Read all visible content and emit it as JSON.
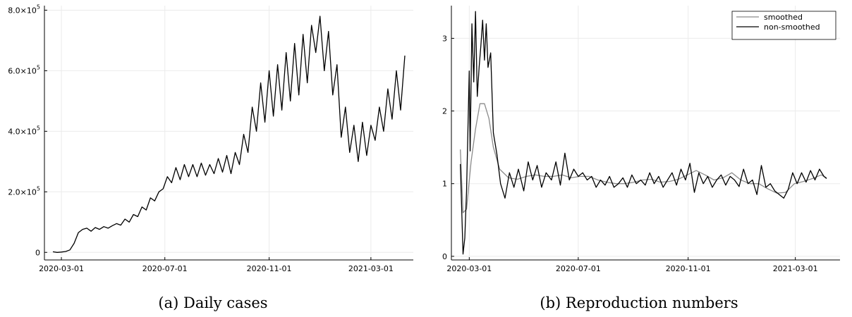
{
  "chart_data": [
    {
      "type": "line",
      "caption": "(a) Daily cases",
      "x_ticks": [
        "2020-03-01",
        "2020-07-01",
        "2020-11-01",
        "2021-03-01"
      ],
      "y_ticks": [
        {
          "value": 0,
          "mantissa": "0",
          "exponent": ""
        },
        {
          "value": 200000,
          "mantissa": "2.0×10",
          "exponent": "5"
        },
        {
          "value": 400000,
          "mantissa": "4.0×10",
          "exponent": "5"
        },
        {
          "value": 600000,
          "mantissa": "6.0×10",
          "exponent": "5"
        },
        {
          "value": 800000,
          "mantissa": "8.0×10",
          "exponent": "5"
        }
      ],
      "xlim": [
        "2020-02-10",
        "2021-04-20"
      ],
      "ylim": [
        -25000,
        815000
      ],
      "grid": true,
      "series": [
        {
          "color": "#000000",
          "x": [
            "2020-02-20",
            "2020-02-25",
            "2020-03-01",
            "2020-03-06",
            "2020-03-11",
            "2020-03-16",
            "2020-03-21",
            "2020-03-26",
            "2020-03-31",
            "2020-04-05",
            "2020-04-10",
            "2020-04-15",
            "2020-04-20",
            "2020-04-25",
            "2020-04-30",
            "2020-05-05",
            "2020-05-10",
            "2020-05-15",
            "2020-05-20",
            "2020-05-25",
            "2020-05-30",
            "2020-06-04",
            "2020-06-09",
            "2020-06-14",
            "2020-06-19",
            "2020-06-24",
            "2020-06-29",
            "2020-07-04",
            "2020-07-09",
            "2020-07-14",
            "2020-07-19",
            "2020-07-24",
            "2020-07-29",
            "2020-08-03",
            "2020-08-08",
            "2020-08-13",
            "2020-08-18",
            "2020-08-23",
            "2020-08-28",
            "2020-09-02",
            "2020-09-07",
            "2020-09-12",
            "2020-09-17",
            "2020-09-22",
            "2020-09-27",
            "2020-10-02",
            "2020-10-07",
            "2020-10-12",
            "2020-10-17",
            "2020-10-22",
            "2020-10-27",
            "2020-11-01",
            "2020-11-06",
            "2020-11-11",
            "2020-11-16",
            "2020-11-21",
            "2020-11-26",
            "2020-12-01",
            "2020-12-06",
            "2020-12-11",
            "2020-12-16",
            "2020-12-21",
            "2020-12-26",
            "2020-12-31",
            "2021-01-05",
            "2021-01-10",
            "2021-01-15",
            "2021-01-20",
            "2021-01-25",
            "2021-01-30",
            "2021-02-04",
            "2021-02-09",
            "2021-02-14",
            "2021-02-19",
            "2021-02-24",
            "2021-03-01",
            "2021-03-06",
            "2021-03-11",
            "2021-03-16",
            "2021-03-21",
            "2021-03-26",
            "2021-03-31",
            "2021-04-05",
            "2021-04-10"
          ],
          "y": [
            2000,
            0,
            1000,
            3000,
            8000,
            30000,
            65000,
            76000,
            80000,
            70000,
            82000,
            76000,
            85000,
            80000,
            88000,
            95000,
            90000,
            110000,
            100000,
            125000,
            118000,
            150000,
            140000,
            180000,
            170000,
            200000,
            210000,
            250000,
            230000,
            280000,
            240000,
            290000,
            250000,
            290000,
            250000,
            295000,
            255000,
            290000,
            260000,
            310000,
            265000,
            320000,
            260000,
            330000,
            290000,
            390000,
            330000,
            480000,
            400000,
            560000,
            430000,
            600000,
            450000,
            620000,
            470000,
            660000,
            500000,
            690000,
            520000,
            720000,
            560000,
            750000,
            660000,
            780000,
            600000,
            730000,
            520000,
            620000,
            380000,
            480000,
            330000,
            420000,
            300000,
            430000,
            320000,
            420000,
            370000,
            480000,
            400000,
            540000,
            440000,
            600000,
            470000,
            650000
          ]
        }
      ]
    },
    {
      "type": "line",
      "caption": "(b) Reproduction numbers",
      "x_ticks": [
        "2020-03-01",
        "2020-07-01",
        "2020-11-01",
        "2021-03-01"
      ],
      "y_ticks": [
        {
          "value": 0,
          "label": "0"
        },
        {
          "value": 1,
          "label": "1"
        },
        {
          "value": 2,
          "label": "2"
        },
        {
          "value": 3,
          "label": "3"
        }
      ],
      "xlim": [
        "2020-02-10",
        "2021-04-20"
      ],
      "ylim": [
        -0.05,
        3.45
      ],
      "grid": true,
      "legend_placement": "top-right",
      "series": [
        {
          "name": "smoothed",
          "color": "#8a8a8a",
          "x": [
            "2020-02-20",
            "2020-02-23",
            "2020-02-27",
            "2020-03-03",
            "2020-03-08",
            "2020-03-13",
            "2020-03-18",
            "2020-03-23",
            "2020-03-28",
            "2020-04-04",
            "2020-04-14",
            "2020-04-24",
            "2020-05-04",
            "2020-05-14",
            "2020-05-24",
            "2020-06-03",
            "2020-06-13",
            "2020-06-23",
            "2020-07-03",
            "2020-07-13",
            "2020-07-23",
            "2020-08-02",
            "2020-08-12",
            "2020-08-22",
            "2020-09-01",
            "2020-09-11",
            "2020-09-21",
            "2020-10-01",
            "2020-10-11",
            "2020-10-21",
            "2020-10-31",
            "2020-11-10",
            "2020-11-20",
            "2020-11-30",
            "2020-12-10",
            "2020-12-20",
            "2020-12-30",
            "2021-01-09",
            "2021-01-19",
            "2021-01-29",
            "2021-02-08",
            "2021-02-18",
            "2021-02-28",
            "2021-03-10",
            "2021-03-20",
            "2021-03-30",
            "2021-04-05"
          ],
          "y": [
            1.47,
            0.6,
            0.65,
            1.3,
            1.75,
            2.1,
            2.1,
            1.9,
            1.5,
            1.2,
            1.08,
            1.06,
            1.1,
            1.12,
            1.1,
            1.1,
            1.12,
            1.08,
            1.1,
            1.1,
            1.05,
            1.02,
            1.0,
            1.0,
            1.02,
            1.05,
            1.06,
            1.02,
            1.03,
            1.06,
            1.12,
            1.18,
            1.12,
            1.05,
            1.08,
            1.15,
            1.05,
            1.0,
            1.0,
            0.93,
            0.87,
            0.88,
            1.0,
            1.03,
            1.07,
            1.12,
            1.08
          ]
        },
        {
          "name": "non-smoothed",
          "color": "#000000",
          "x": [
            "2020-02-20",
            "2020-02-23",
            "2020-02-25",
            "2020-02-27",
            "2020-03-01",
            "2020-03-02",
            "2020-03-04",
            "2020-03-06",
            "2020-03-08",
            "2020-03-10",
            "2020-03-12",
            "2020-03-14",
            "2020-03-16",
            "2020-03-18",
            "2020-03-20",
            "2020-03-22",
            "2020-03-25",
            "2020-03-28",
            "2020-04-01",
            "2020-04-05",
            "2020-04-10",
            "2020-04-15",
            "2020-04-20",
            "2020-04-25",
            "2020-05-01",
            "2020-05-06",
            "2020-05-11",
            "2020-05-16",
            "2020-05-21",
            "2020-05-26",
            "2020-06-01",
            "2020-06-06",
            "2020-06-11",
            "2020-06-16",
            "2020-06-21",
            "2020-06-26",
            "2020-07-01",
            "2020-07-06",
            "2020-07-11",
            "2020-07-16",
            "2020-07-21",
            "2020-07-26",
            "2020-07-31",
            "2020-08-05",
            "2020-08-10",
            "2020-08-15",
            "2020-08-20",
            "2020-08-25",
            "2020-08-30",
            "2020-09-04",
            "2020-09-09",
            "2020-09-14",
            "2020-09-19",
            "2020-09-24",
            "2020-09-29",
            "2020-10-04",
            "2020-10-09",
            "2020-10-14",
            "2020-10-19",
            "2020-10-24",
            "2020-10-29",
            "2020-11-03",
            "2020-11-08",
            "2020-11-13",
            "2020-11-18",
            "2020-11-23",
            "2020-11-28",
            "2020-12-03",
            "2020-12-08",
            "2020-12-13",
            "2020-12-18",
            "2020-12-23",
            "2020-12-28",
            "2021-01-02",
            "2021-01-07",
            "2021-01-12",
            "2021-01-17",
            "2021-01-22",
            "2021-01-27",
            "2021-02-01",
            "2021-02-06",
            "2021-02-11",
            "2021-02-16",
            "2021-02-21",
            "2021-02-26",
            "2021-03-03",
            "2021-03-08",
            "2021-03-13",
            "2021-03-18",
            "2021-03-23",
            "2021-03-28",
            "2021-04-02",
            "2021-04-05"
          ],
          "y": [
            1.27,
            0.03,
            0.25,
            0.9,
            2.55,
            1.45,
            3.2,
            2.4,
            3.37,
            2.2,
            2.6,
            2.9,
            3.25,
            2.7,
            3.2,
            2.6,
            2.8,
            1.7,
            1.4,
            1.0,
            0.8,
            1.15,
            0.95,
            1.2,
            0.9,
            1.3,
            1.05,
            1.25,
            0.95,
            1.15,
            1.05,
            1.3,
            0.98,
            1.42,
            1.05,
            1.2,
            1.1,
            1.15,
            1.05,
            1.1,
            0.95,
            1.05,
            0.98,
            1.1,
            0.95,
            1.0,
            1.08,
            0.95,
            1.12,
            1.0,
            1.05,
            0.98,
            1.15,
            1.0,
            1.1,
            0.95,
            1.05,
            1.15,
            0.98,
            1.2,
            1.05,
            1.28,
            0.88,
            1.15,
            1.0,
            1.1,
            0.95,
            1.05,
            1.12,
            0.98,
            1.1,
            1.05,
            0.96,
            1.2,
            1.0,
            1.05,
            0.85,
            1.25,
            0.95,
            1.0,
            0.9,
            0.85,
            0.8,
            0.92,
            1.15,
            1.0,
            1.15,
            1.02,
            1.18,
            1.05,
            1.2,
            1.1,
            1.07
          ]
        }
      ]
    }
  ]
}
